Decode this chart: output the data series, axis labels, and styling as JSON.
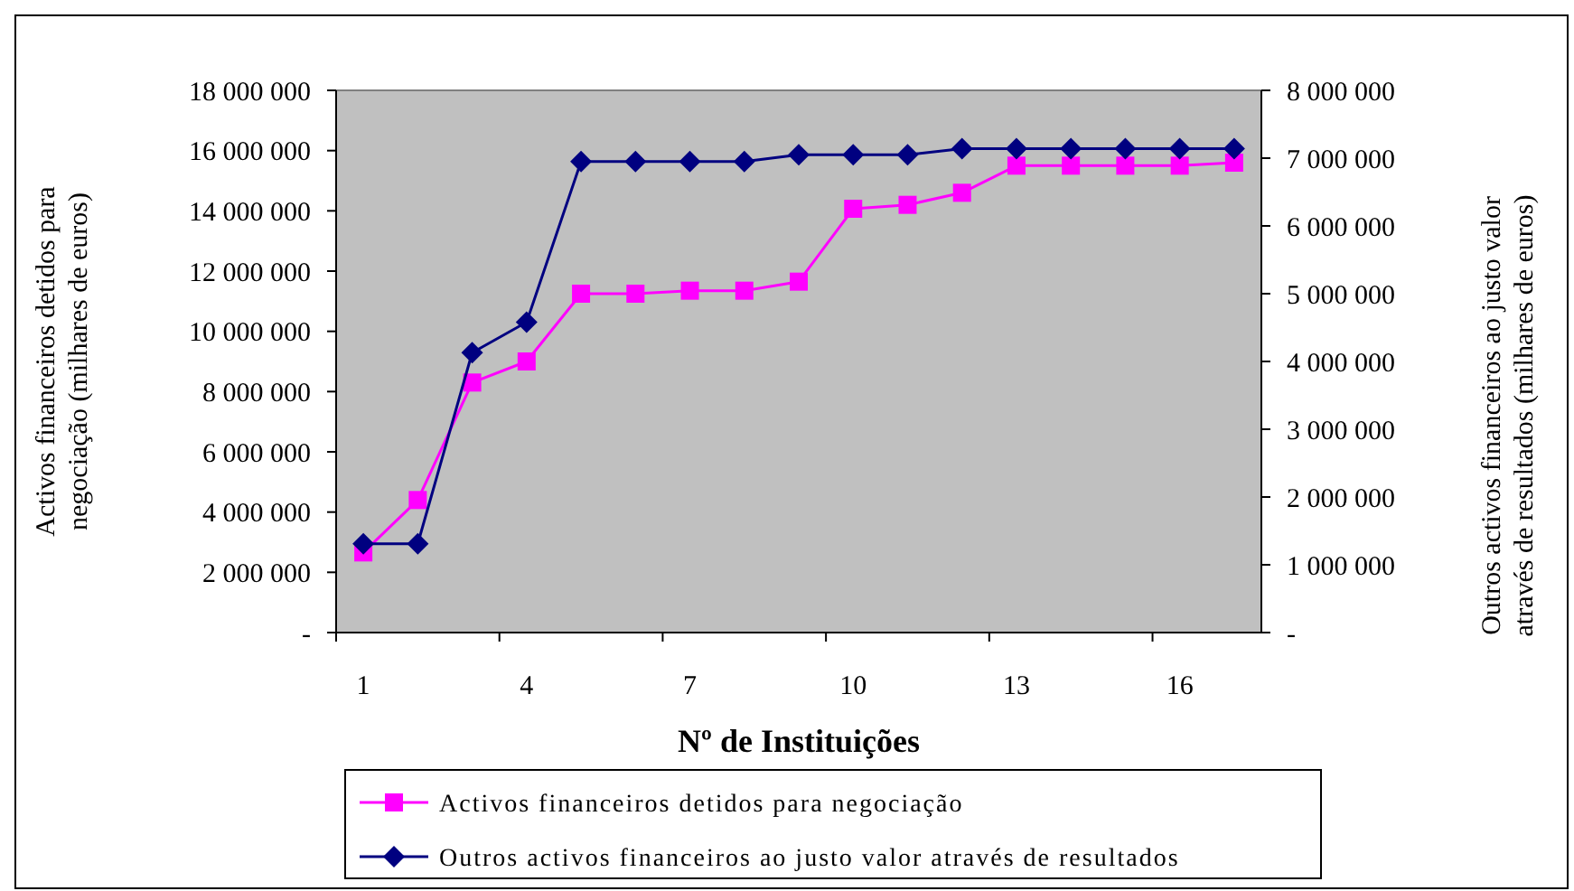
{
  "chart_data": {
    "type": "line",
    "xlabel": "Nº de Instituições",
    "ylabel": "Activos financeiros detidos para negociação  (milhares de euros)",
    "y2label": "Outros activos financeiros ao justo valor através de resultados  (milhares de euros)",
    "categories": [
      "1",
      null,
      null,
      "4",
      null,
      null,
      "7",
      null,
      null,
      "10",
      null,
      null,
      "13",
      null,
      null,
      "16",
      null
    ],
    "series": [
      {
        "name": "Activos financeiros detidos para negociação",
        "color": "#ff00ff",
        "marker": "square",
        "values": [
          2660000,
          4400000,
          8300000,
          9000000,
          11250000,
          11250000,
          11350000,
          11350000,
          11650000,
          14070000,
          14200000,
          14600000,
          15500000,
          15500000,
          15500000,
          15500000,
          15600000
        ]
      },
      {
        "name": "Outros activos financeiros ao justo valor através de resultados",
        "color": "#000080",
        "marker": "diamond",
        "axis": "y2",
        "values": [
          1310000,
          1310000,
          4130000,
          4580000,
          6950000,
          6950000,
          6950000,
          6950000,
          7050000,
          7050000,
          7050000,
          7140000,
          7140000,
          7140000,
          7140000,
          7140000,
          7140000
        ]
      }
    ],
    "ylim": [
      0,
      18000000
    ],
    "yticks": [
      {
        "value": 0,
        "label": "-"
      },
      {
        "value": 2000000,
        "label": "2 000 000"
      },
      {
        "value": 4000000,
        "label": "4 000 000"
      },
      {
        "value": 6000000,
        "label": "6 000 000"
      },
      {
        "value": 8000000,
        "label": "8 000 000"
      },
      {
        "value": 10000000,
        "label": "10 000 000"
      },
      {
        "value": 12000000,
        "label": "12 000 000"
      },
      {
        "value": 14000000,
        "label": "14 000 000"
      },
      {
        "value": 16000000,
        "label": "16 000 000"
      },
      {
        "value": 18000000,
        "label": "18 000 000"
      }
    ],
    "y2lim": [
      0,
      8000000
    ],
    "y2ticks": [
      {
        "value": 0,
        "label": "-"
      },
      {
        "value": 1000000,
        "label": "1 000 000"
      },
      {
        "value": 2000000,
        "label": "2 000 000"
      },
      {
        "value": 3000000,
        "label": "3 000 000"
      },
      {
        "value": 4000000,
        "label": "4 000 000"
      },
      {
        "value": 5000000,
        "label": "5 000 000"
      },
      {
        "value": 6000000,
        "label": "6 000 000"
      },
      {
        "value": 7000000,
        "label": "7 000 000"
      },
      {
        "value": 8000000,
        "label": "8 000 000"
      }
    ],
    "grid": false,
    "legend": "bottom"
  }
}
